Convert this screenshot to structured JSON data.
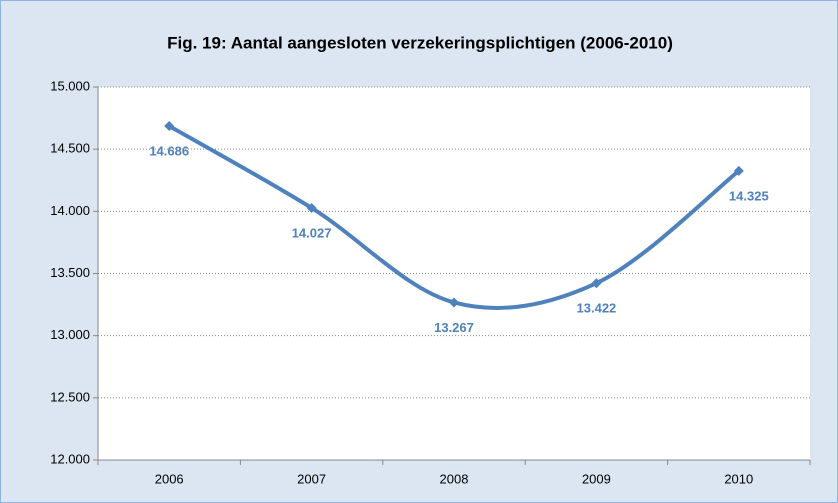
{
  "chart_data": {
    "type": "line",
    "title": "Fig. 19: Aantal aangesloten verzekeringsplichtigen (2006-2010)",
    "categories": [
      "2006",
      "2007",
      "2008",
      "2009",
      "2010"
    ],
    "values": [
      14686,
      14027,
      13267,
      13422,
      14325
    ],
    "value_labels": [
      "14.686",
      "14.027",
      "13.267",
      "13.422",
      "14.325"
    ],
    "color": "#4f81bd",
    "smooth": true,
    "ylim": [
      12000,
      15000
    ],
    "yticks": [
      {
        "value": 12000,
        "label": "12.000"
      },
      {
        "value": 12500,
        "label": "12.500"
      },
      {
        "value": 13000,
        "label": "13.000"
      },
      {
        "value": 13500,
        "label": "13.500"
      },
      {
        "value": 14000,
        "label": "14.000"
      },
      {
        "value": 14500,
        "label": "14.500"
      },
      {
        "value": 15000,
        "label": "15.000"
      }
    ],
    "grid": true
  }
}
